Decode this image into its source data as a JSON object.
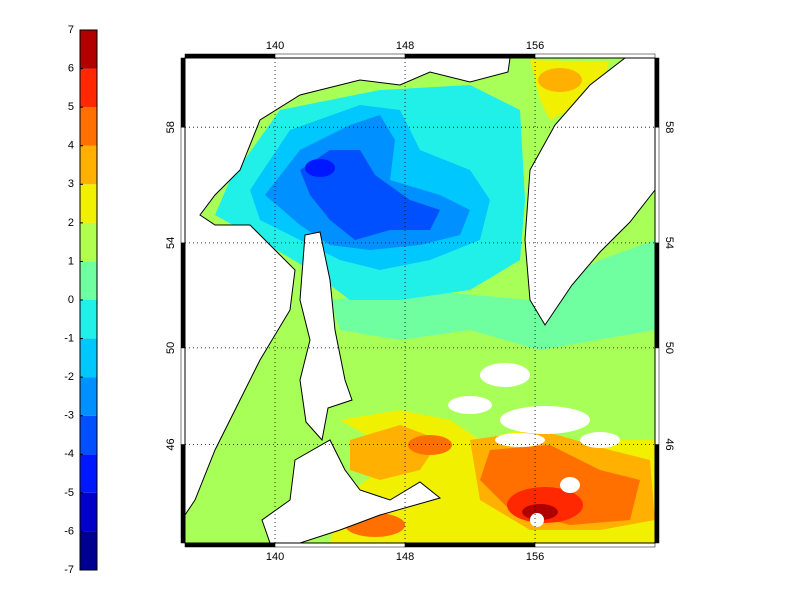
{
  "colorbar": {
    "lim": [
      -7,
      7
    ],
    "ticks": [
      -7,
      -6,
      -5,
      -4,
      -3,
      -2,
      -1,
      0,
      1,
      2,
      3,
      4,
      5,
      6,
      7
    ],
    "colors": [
      "#000090",
      "#0000c8",
      "#0018ff",
      "#0050ff",
      "#0090ff",
      "#00c8ff",
      "#20f0e8",
      "#70ffa0",
      "#b0ff50",
      "#f0f000",
      "#ffb000",
      "#ff7000",
      "#ff2800",
      "#b00000"
    ]
  },
  "map": {
    "projection": "mercator",
    "xlim": [
      134.46,
      163.38
    ],
    "ylim": [
      41.6,
      60.2
    ],
    "xticks": [
      140,
      148,
      156
    ],
    "yticks": [
      46,
      50,
      54,
      58
    ],
    "grid": true
  }
}
